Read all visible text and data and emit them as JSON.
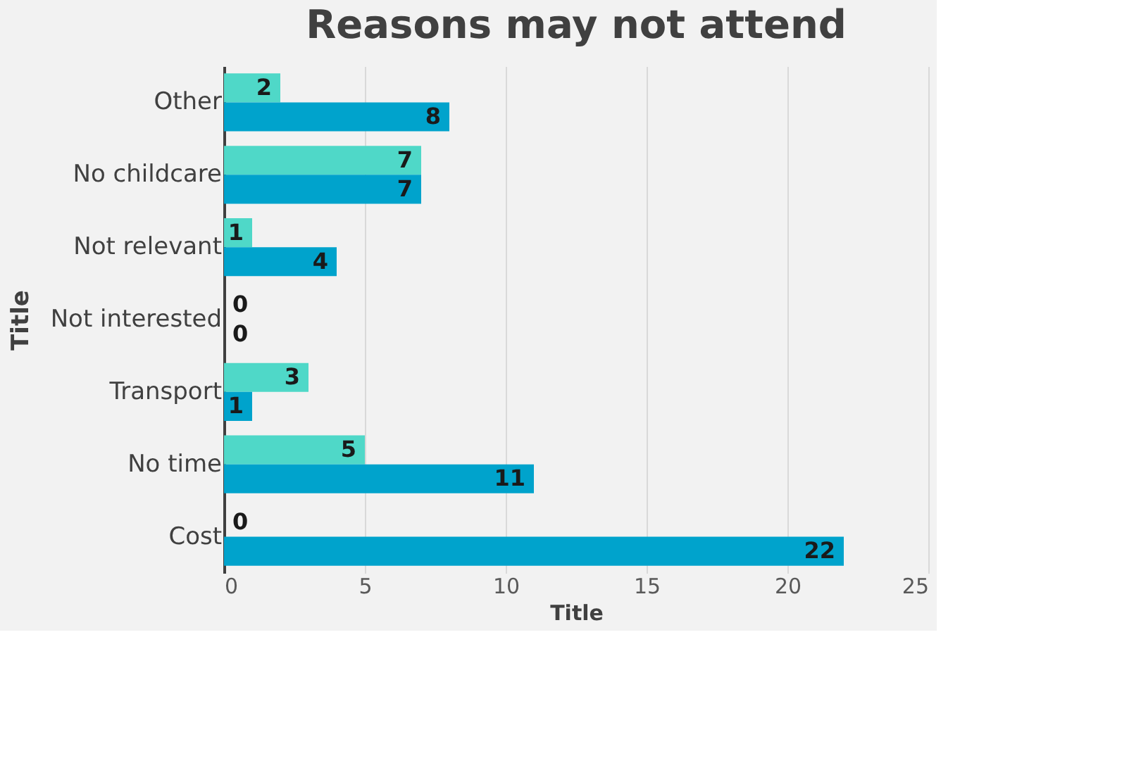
{
  "chart_data": {
    "type": "bar",
    "orientation": "horizontal",
    "title": "Reasons may not attend",
    "xlabel": "Title",
    "ylabel": "Title",
    "categories": [
      "Other",
      "No childcare",
      "Not relevant",
      "Not interested",
      "Transport",
      "No time",
      "Cost"
    ],
    "series": [
      {
        "color": "#4fd8c8",
        "values": [
          2,
          7,
          1,
          0,
          3,
          5,
          0
        ]
      },
      {
        "color": "#00a3cc",
        "values": [
          8,
          7,
          4,
          0,
          1,
          11,
          22
        ]
      }
    ],
    "xlim": [
      0,
      25
    ],
    "xticks": [
      0,
      5,
      10,
      15,
      20,
      25
    ],
    "grid": "x",
    "legend": false,
    "data_labels": true
  }
}
